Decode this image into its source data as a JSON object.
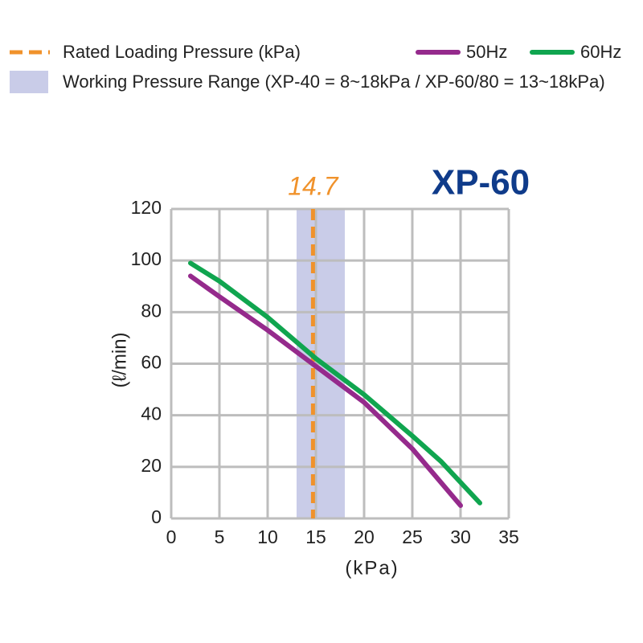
{
  "chart_data": {
    "type": "line",
    "title": "XP-60",
    "xlabel": "(kPa)",
    "ylabel": "(ℓ/min)",
    "xlim": [
      0,
      35
    ],
    "xticks": [
      0,
      5,
      10,
      15,
      20,
      25,
      30,
      35
    ],
    "ylim": [
      0,
      120
    ],
    "yticks": [
      0,
      20,
      40,
      60,
      80,
      100,
      120
    ],
    "grid": true,
    "rated_pressure": {
      "name": "Rated Loading Pressure (kPa)",
      "value": 14.7,
      "color": "#f0922b"
    },
    "working_range": {
      "name": "Working Pressure Range (XP-40 = 8~18kPa / XP-60/80 = 13~18kPa)",
      "range": [
        13,
        18
      ],
      "color": "#c9cce8"
    },
    "series": [
      {
        "name": "50Hz",
        "color": "#952a8c",
        "x": [
          2,
          5,
          10,
          15,
          20,
          25,
          30
        ],
        "values": [
          94,
          86,
          73,
          59,
          45,
          27,
          5
        ]
      },
      {
        "name": "60Hz",
        "color": "#10a54f",
        "x": [
          2,
          5,
          10,
          15,
          20,
          25,
          28,
          32
        ],
        "values": [
          99,
          92,
          78,
          62,
          48,
          32,
          22,
          6
        ]
      }
    ]
  }
}
